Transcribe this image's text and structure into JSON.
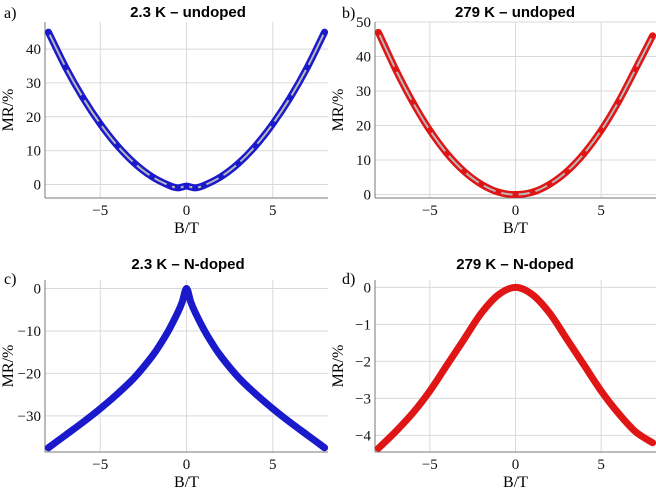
{
  "chart_data": [
    {
      "id": "a",
      "panel_label": "a)",
      "title": "2.3 K – undoped",
      "type": "line",
      "xlabel": "B/T",
      "ylabel": "MR/%",
      "xlim": [
        -8.2,
        8.2
      ],
      "ylim": [
        -4,
        48
      ],
      "xticks": [
        -5,
        0,
        5
      ],
      "xtick_labels": [
        "−5",
        "0",
        "5"
      ],
      "yticks": [
        0,
        10,
        20,
        30,
        40
      ],
      "ytick_labels": [
        "0",
        "10",
        "20",
        "30",
        "40"
      ],
      "grid": true,
      "series": [
        {
          "color": "#1a1acc",
          "fit_color": "#b8b8b8",
          "x": [
            -8,
            -7,
            -6,
            -5,
            -4,
            -3,
            -2,
            -1,
            -0.5,
            0,
            0.5,
            1,
            2,
            3,
            4,
            5,
            6,
            7,
            8
          ],
          "y": [
            45,
            34.6,
            25.6,
            17.9,
            11.4,
            6.2,
            2.3,
            -0.3,
            -1.0,
            -0.5,
            -1.0,
            -0.3,
            2.3,
            6.2,
            11.4,
            17.9,
            25.6,
            34.6,
            45
          ]
        }
      ]
    },
    {
      "id": "b",
      "panel_label": "b)",
      "title": "279 K – undoped",
      "type": "line",
      "xlabel": "B/T",
      "ylabel": "MR/%",
      "xlim": [
        -8.2,
        8.2
      ],
      "ylim": [
        -1,
        50
      ],
      "xticks": [
        -5,
        0,
        5
      ],
      "xtick_labels": [
        "−5",
        "0",
        "5"
      ],
      "yticks": [
        0,
        10,
        20,
        30,
        40,
        50
      ],
      "ytick_labels": [
        "0",
        "10",
        "20",
        "30",
        "40",
        "50"
      ],
      "grid": true,
      "series": [
        {
          "color": "#e01515",
          "fit_color": "#b8b8b8",
          "x": [
            -8,
            -7,
            -6,
            -5,
            -4,
            -3,
            -2,
            -1,
            0,
            1,
            2,
            3,
            4,
            5,
            6,
            7,
            8
          ],
          "y": [
            47,
            36.3,
            26.8,
            18.6,
            11.9,
            6.7,
            3.0,
            0.7,
            0,
            0.7,
            3.0,
            6.7,
            11.9,
            18.6,
            26.8,
            36.3,
            46
          ]
        }
      ]
    },
    {
      "id": "c",
      "panel_label": "c)",
      "title": "2.3 K – N-doped",
      "type": "line",
      "xlabel": "B/T",
      "ylabel": "MR/%",
      "xlim": [
        -8.2,
        8.2
      ],
      "ylim": [
        -38.5,
        2
      ],
      "xticks": [
        -5,
        0,
        5
      ],
      "xtick_labels": [
        "−5",
        "0",
        "5"
      ],
      "yticks": [
        0,
        -10,
        -20,
        -30
      ],
      "ytick_labels": [
        "0",
        "−10",
        "−20",
        "−30"
      ],
      "grid": true,
      "series": [
        {
          "color": "#1a1acc",
          "x": [
            -8,
            -7,
            -6,
            -5,
            -4,
            -3,
            -2,
            -1.5,
            -1,
            -0.5,
            -0.25,
            0,
            0.25,
            0.5,
            1,
            1.5,
            2,
            3,
            4,
            5,
            6,
            7,
            8
          ],
          "y": [
            -37.5,
            -34.5,
            -31.5,
            -28.3,
            -24.8,
            -20.9,
            -16.0,
            -13.0,
            -9.6,
            -5.6,
            -3.2,
            0,
            -3.2,
            -5.6,
            -9.6,
            -13.0,
            -16.0,
            -20.9,
            -24.8,
            -28.3,
            -31.5,
            -34.5,
            -37.5
          ]
        }
      ]
    },
    {
      "id": "d",
      "panel_label": "d)",
      "title": "279 K – N-doped",
      "type": "line",
      "xlabel": "B/T",
      "ylabel": "MR/%",
      "xlim": [
        -8.2,
        8.2
      ],
      "ylim": [
        -4.45,
        0.2
      ],
      "xticks": [
        -5,
        0,
        5
      ],
      "xtick_labels": [
        "−5",
        "0",
        "5"
      ],
      "yticks": [
        0,
        -1,
        -2,
        -3,
        -4
      ],
      "ytick_labels": [
        "0",
        "−1",
        "−2",
        "−3",
        "−4"
      ],
      "grid": true,
      "series": [
        {
          "color": "#e01515",
          "x": [
            -8,
            -7,
            -6,
            -5,
            -4,
            -3,
            -2,
            -1,
            0,
            1,
            2,
            3,
            4,
            5,
            6,
            7,
            8
          ],
          "y": [
            -4.35,
            -3.9,
            -3.4,
            -2.8,
            -2.1,
            -1.4,
            -0.7,
            -0.2,
            0,
            -0.2,
            -0.7,
            -1.4,
            -2.1,
            -2.8,
            -3.4,
            -3.9,
            -4.2
          ]
        }
      ]
    }
  ]
}
